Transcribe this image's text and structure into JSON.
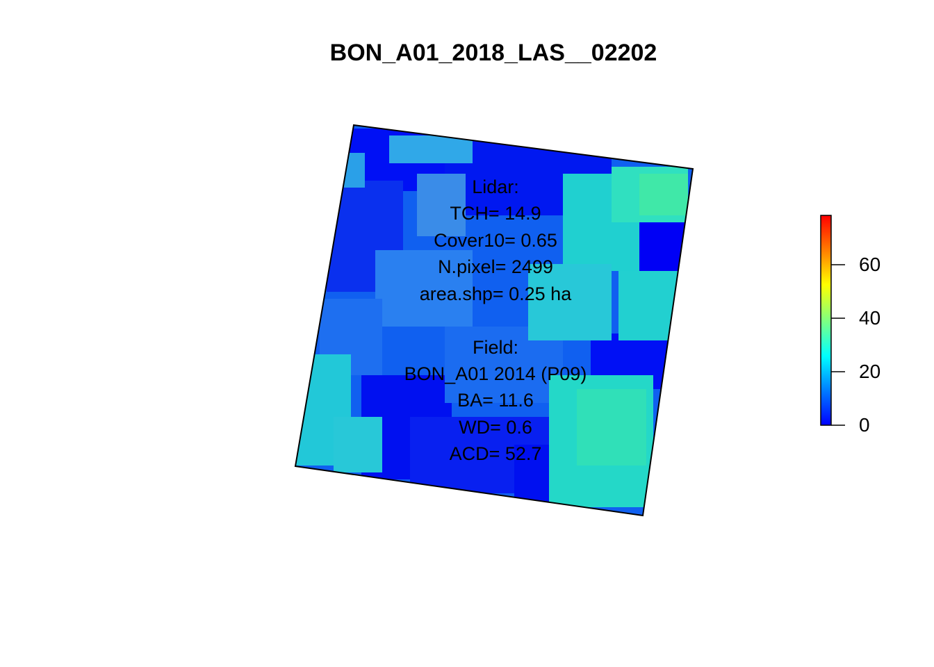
{
  "title": "BON_A01_2018_LAS__02202",
  "lidar_block": {
    "heading": "Lidar:",
    "tch": "TCH= 14.9",
    "cover10": "Cover10= 0.65",
    "npixel": "N.pixel= 2499",
    "area": "area.shp= 0.25 ha"
  },
  "field_block": {
    "heading": "Field:",
    "plot": "BON_A01 2014 (P09)",
    "ba": "BA= 11.6",
    "wd": "WD= 0.6",
    "acd": "ACD= 52.7"
  },
  "legend": {
    "ticks": [
      "0",
      "20",
      "40",
      "60"
    ],
    "tick_values": [
      0,
      20,
      40,
      60
    ],
    "range": [
      0,
      78
    ],
    "colors": [
      "#0000ff",
      "#0080ff",
      "#00ffff",
      "#80ff80",
      "#ffff00",
      "#ff8000",
      "#ff0000"
    ]
  },
  "map_colors": {
    "low": "#0000ff",
    "mid": "#1e90ff",
    "high": "#20e0d0",
    "highest": "#40f0a0"
  }
}
